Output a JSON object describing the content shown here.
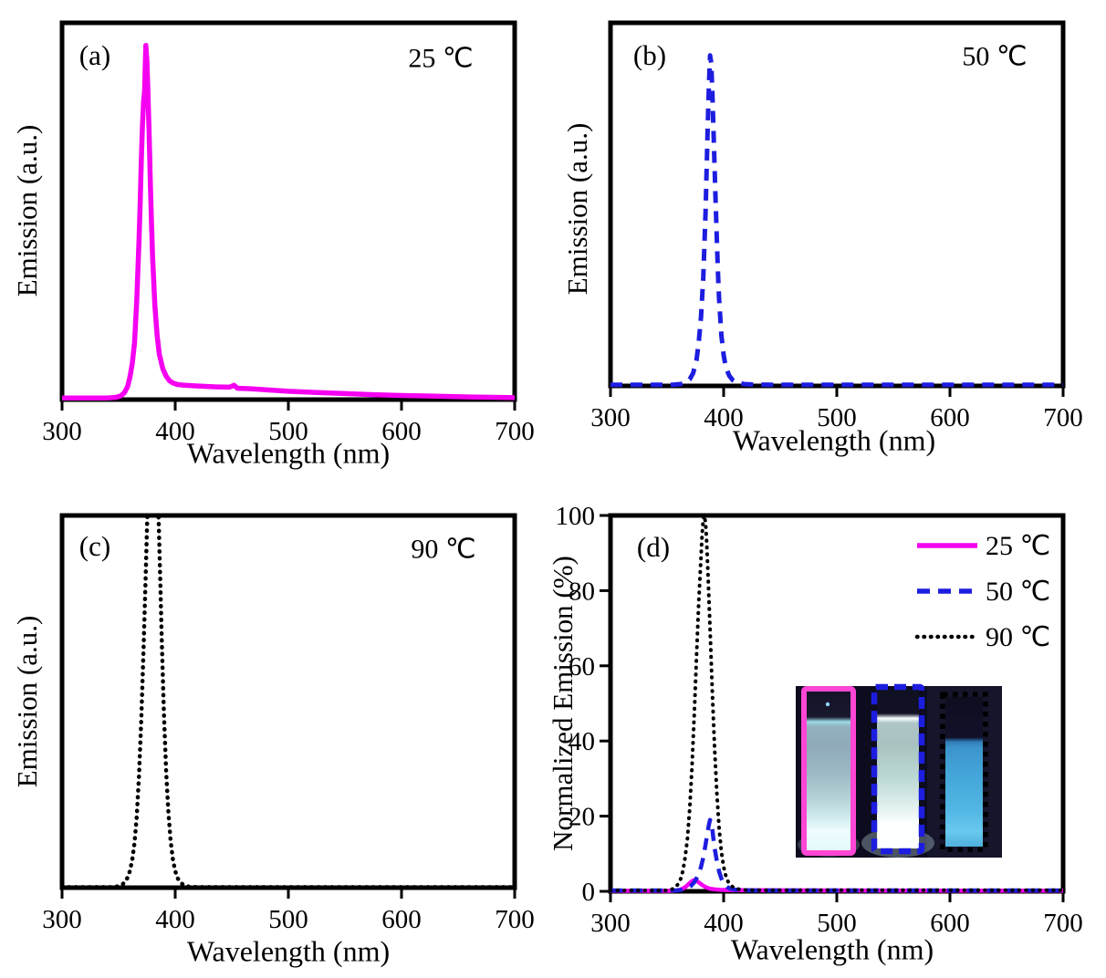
{
  "figure": {
    "panels": [
      {
        "tag": "(a)",
        "temperature": "25 ℃",
        "xlabel": "Wavelength (nm)",
        "ylabel": "Emission (a.u.)"
      },
      {
        "tag": "(b)",
        "temperature": "50 ℃",
        "xlabel": "Wavelength (nm)",
        "ylabel": "Emission (a.u.)"
      },
      {
        "tag": "(c)",
        "temperature": "90 ℃",
        "xlabel": "Wavelength (nm)",
        "ylabel": "Emission (a.u.)"
      },
      {
        "tag": "(d)",
        "temperature": "",
        "xlabel": "Wavelength (nm)",
        "ylabel": "Normalized Emission (%)"
      }
    ],
    "colors": {
      "magenta": "#f500f0",
      "blue": "#1d1de0",
      "black": "#000000",
      "frame": "#000000"
    }
  },
  "chart_data": [
    {
      "type": "line",
      "panel": "a",
      "annotation": "25 ℃",
      "xlabel": "Wavelength (nm)",
      "ylabel": "Emission (a.u.)",
      "xlim": [
        300,
        700
      ],
      "x_ticks": [
        300,
        400,
        500,
        600,
        700
      ],
      "y_axis": "arbitrary units, no tick labels",
      "series": [
        {
          "name": "emission 25 ℃",
          "color": "#f500f0",
          "line_style": "solid",
          "peak_nm": 374,
          "points_unit": "percent of plot height",
          "points": [
            [
              300,
              0.4
            ],
            [
              340,
              0.4
            ],
            [
              348,
              0.6
            ],
            [
              352,
              1.0
            ],
            [
              355,
              1.8
            ],
            [
              358,
              3.5
            ],
            [
              360,
              6
            ],
            [
              362,
              9.5
            ],
            [
              364,
              15
            ],
            [
              366,
              26
            ],
            [
              368,
              42
            ],
            [
              369,
              52
            ],
            [
              370,
              63
            ],
            [
              371,
              72
            ],
            [
              372,
              79
            ],
            [
              373,
              82
            ],
            [
              373.5,
              88
            ],
            [
              374,
              94
            ],
            [
              375,
              90
            ],
            [
              376,
              81
            ],
            [
              377,
              70
            ],
            [
              378,
              58
            ],
            [
              379,
              47
            ],
            [
              380,
              38
            ],
            [
              382,
              25
            ],
            [
              384,
              17
            ],
            [
              386,
              12
            ],
            [
              389,
              8.2
            ],
            [
              392,
              6.2
            ],
            [
              395,
              5.0
            ],
            [
              398,
              4.4
            ],
            [
              402,
              4.0
            ],
            [
              408,
              3.8
            ],
            [
              420,
              3.6
            ],
            [
              435,
              3.4
            ],
            [
              448,
              3.3
            ],
            [
              452,
              3.8
            ],
            [
              455,
              3.0
            ],
            [
              465,
              2.9
            ],
            [
              480,
              2.6
            ],
            [
              500,
              2.2
            ],
            [
              525,
              1.9
            ],
            [
              550,
              1.6
            ],
            [
              575,
              1.3
            ],
            [
              600,
              1.1
            ],
            [
              630,
              0.9
            ],
            [
              660,
              0.7
            ],
            [
              700,
              0.5
            ]
          ]
        }
      ]
    },
    {
      "type": "line",
      "panel": "b",
      "annotation": "50 ℃",
      "xlabel": "Wavelength (nm)",
      "ylabel": "Emission (a.u.)",
      "xlim": [
        300,
        700
      ],
      "x_ticks": [
        300,
        400,
        500,
        600,
        700
      ],
      "y_axis": "arbitrary units, no tick labels",
      "series": [
        {
          "name": "emission 50 ℃",
          "color": "#1d1de0",
          "line_style": "dashed",
          "peak_nm": 388,
          "points_unit": "percent of plot height",
          "points": [
            [
              300,
              0.3
            ],
            [
              355,
              0.3
            ],
            [
              362,
              0.5
            ],
            [
              366,
              0.9
            ],
            [
              370,
              1.8
            ],
            [
              373,
              3.5
            ],
            [
              376,
              7
            ],
            [
              378,
              12
            ],
            [
              380,
              19
            ],
            [
              382,
              30
            ],
            [
              384,
              48
            ],
            [
              385,
              60
            ],
            [
              386,
              72
            ],
            [
              387,
              83
            ],
            [
              388,
              91
            ],
            [
              389,
              89
            ],
            [
              390,
              81
            ],
            [
              391,
              71
            ],
            [
              392,
              60
            ],
            [
              393,
              50
            ],
            [
              394,
              40
            ],
            [
              395,
              31
            ],
            [
              396,
              24
            ],
            [
              398,
              14
            ],
            [
              400,
              8.5
            ],
            [
              402,
              5
            ],
            [
              405,
              2.8
            ],
            [
              408,
              1.6
            ],
            [
              412,
              0.9
            ],
            [
              418,
              0.5
            ],
            [
              428,
              0.35
            ],
            [
              450,
              0.3
            ],
            [
              500,
              0.3
            ],
            [
              600,
              0.3
            ],
            [
              700,
              0.3
            ]
          ]
        }
      ]
    },
    {
      "type": "line",
      "panel": "c",
      "annotation": "90 ℃",
      "xlabel": "Wavelength (nm)",
      "ylabel": "Emission (a.u.)",
      "xlim": [
        300,
        700
      ],
      "x_ticks": [
        300,
        400,
        500,
        600,
        700
      ],
      "y_axis": "arbitrary units, no tick labels; peak clipped at top of frame",
      "series": [
        {
          "name": "emission 90 ℃",
          "color": "#000000",
          "line_style": "dotted",
          "peak_nm": 380,
          "clipped_at_top": true,
          "points_unit": "percent of plot height",
          "points": [
            [
              300,
              0.15
            ],
            [
              345,
              0.15
            ],
            [
              350,
              0.4
            ],
            [
              353,
              0.8
            ],
            [
              356,
              1.6
            ],
            [
              358,
              2.8
            ],
            [
              360,
              4.5
            ],
            [
              362,
              7.5
            ],
            [
              364,
              12
            ],
            [
              366,
              19
            ],
            [
              368,
              30
            ],
            [
              370,
              45
            ],
            [
              372,
              64
            ],
            [
              374,
              85
            ],
            [
              375,
              96
            ],
            [
              376,
              106
            ],
            [
              377,
              114
            ],
            [
              378,
              121
            ],
            [
              380,
              127
            ],
            [
              381,
              128
            ],
            [
              382,
              126
            ],
            [
              383,
              121
            ],
            [
              384,
              113
            ],
            [
              385,
              103
            ],
            [
              386,
              92
            ],
            [
              387,
              80
            ],
            [
              388,
              68
            ],
            [
              389,
              57
            ],
            [
              390,
              47
            ],
            [
              392,
              31
            ],
            [
              394,
              20
            ],
            [
              396,
              12.5
            ],
            [
              398,
              7.5
            ],
            [
              400,
              4.5
            ],
            [
              402,
              2.6
            ],
            [
              405,
              1.3
            ],
            [
              408,
              0.6
            ],
            [
              412,
              0.3
            ],
            [
              420,
              0.15
            ],
            [
              450,
              0.15
            ],
            [
              700,
              0.15
            ]
          ]
        }
      ]
    },
    {
      "type": "line",
      "panel": "d",
      "xlabel": "Wavelength (nm)",
      "ylabel": "Normalized Emission (%)",
      "xlim": [
        300,
        700
      ],
      "x_ticks": [
        300,
        400,
        500,
        600,
        700
      ],
      "ylim": [
        0,
        100
      ],
      "y_ticks": [
        0,
        20,
        40,
        60,
        80,
        100
      ],
      "legend": {
        "position": "top right",
        "entries": [
          {
            "label": "25 ℃",
            "color": "#f500f0",
            "line_style": "solid"
          },
          {
            "label": "50 ℃",
            "color": "#1d1de0",
            "line_style": "dashed"
          },
          {
            "label": "90 ℃",
            "color": "#000000",
            "line_style": "dotted"
          }
        ]
      },
      "series": [
        {
          "name": "25 ℃",
          "color": "#f500f0",
          "line_style": "solid",
          "peak_nm": 374,
          "peak_value_percent": 3,
          "points": [
            [
              300,
              0.15
            ],
            [
              355,
              0.15
            ],
            [
              360,
              0.3
            ],
            [
              363,
              0.6
            ],
            [
              366,
              1.1
            ],
            [
              368,
              1.6
            ],
            [
              370,
              2.2
            ],
            [
              372,
              2.7
            ],
            [
              374,
              3
            ],
            [
              375,
              3
            ],
            [
              376,
              2.8
            ],
            [
              378,
              2.4
            ],
            [
              380,
              1.9
            ],
            [
              382,
              1.5
            ],
            [
              385,
              1.0
            ],
            [
              388,
              0.7
            ],
            [
              392,
              0.5
            ],
            [
              397,
              0.4
            ],
            [
              405,
              0.35
            ],
            [
              420,
              0.3
            ],
            [
              450,
              0.27
            ],
            [
              500,
              0.25
            ],
            [
              550,
              0.22
            ],
            [
              600,
              0.2
            ],
            [
              650,
              0.2
            ],
            [
              700,
              0.2
            ]
          ]
        },
        {
          "name": "50 ℃",
          "color": "#1d1de0",
          "line_style": "dashed",
          "peak_nm": 388,
          "peak_value_percent": 19,
          "points": [
            [
              300,
              0.25
            ],
            [
              358,
              0.25
            ],
            [
              363,
              0.4
            ],
            [
              367,
              0.8
            ],
            [
              371,
              1.4
            ],
            [
              374,
              2.4
            ],
            [
              377,
              4
            ],
            [
              380,
              6.5
            ],
            [
              382,
              9
            ],
            [
              384,
              12.5
            ],
            [
              386,
              16
            ],
            [
              387,
              17.8
            ],
            [
              388,
              19
            ],
            [
              389,
              18.3
            ],
            [
              390,
              16.5
            ],
            [
              391,
              14
            ],
            [
              392,
              11.5
            ],
            [
              394,
              8
            ],
            [
              396,
              5.3
            ],
            [
              398,
              3.4
            ],
            [
              400,
              2.2
            ],
            [
              403,
              1.2
            ],
            [
              406,
              0.7
            ],
            [
              410,
              0.45
            ],
            [
              416,
              0.3
            ],
            [
              430,
              0.25
            ],
            [
              500,
              0.25
            ],
            [
              600,
              0.25
            ],
            [
              700,
              0.25
            ]
          ]
        },
        {
          "name": "90 ℃",
          "color": "#000000",
          "line_style": "dotted",
          "peak_nm": 383,
          "peak_value_percent": 100,
          "points": [
            [
              300,
              0.25
            ],
            [
              350,
              0.25
            ],
            [
              354,
              0.5
            ],
            [
              357,
              1
            ],
            [
              360,
              2
            ],
            [
              362,
              3.3
            ],
            [
              364,
              5.5
            ],
            [
              366,
              9
            ],
            [
              368,
              14
            ],
            [
              370,
              22
            ],
            [
              372,
              33
            ],
            [
              374,
              47
            ],
            [
              376,
              62
            ],
            [
              378,
              77
            ],
            [
              380,
              89
            ],
            [
              381,
              95
            ],
            [
              382,
              99
            ],
            [
              383,
              100
            ],
            [
              384,
              98
            ],
            [
              385,
              93
            ],
            [
              386,
              86
            ],
            [
              388,
              70
            ],
            [
              390,
              53
            ],
            [
              392,
              38
            ],
            [
              394,
              26
            ],
            [
              396,
              17
            ],
            [
              398,
              10.5
            ],
            [
              400,
              6.5
            ],
            [
              402,
              4
            ],
            [
              404,
              2.5
            ],
            [
              407,
              1.4
            ],
            [
              410,
              0.8
            ],
            [
              415,
              0.45
            ],
            [
              422,
              0.3
            ],
            [
              450,
              0.3
            ],
            [
              700,
              0.3
            ]
          ]
        }
      ],
      "inset": {
        "description": "Photograph of three cuvettes under UV illumination",
        "cuvettes": [
          {
            "outline_style": "solid",
            "outline_color": "#ff46d4",
            "sample": "25 ℃",
            "appearance": "pale cyan-white glow, bright bottom"
          },
          {
            "outline_style": "dashed",
            "outline_color": "#1d1de0",
            "sample": "50 ℃",
            "appearance": "bright cyan-white glow, white bottom"
          },
          {
            "outline_style": "dotted",
            "outline_color": "#000000",
            "sample": "90 ℃",
            "appearance": "dimmer blue glow"
          }
        ]
      }
    }
  ]
}
